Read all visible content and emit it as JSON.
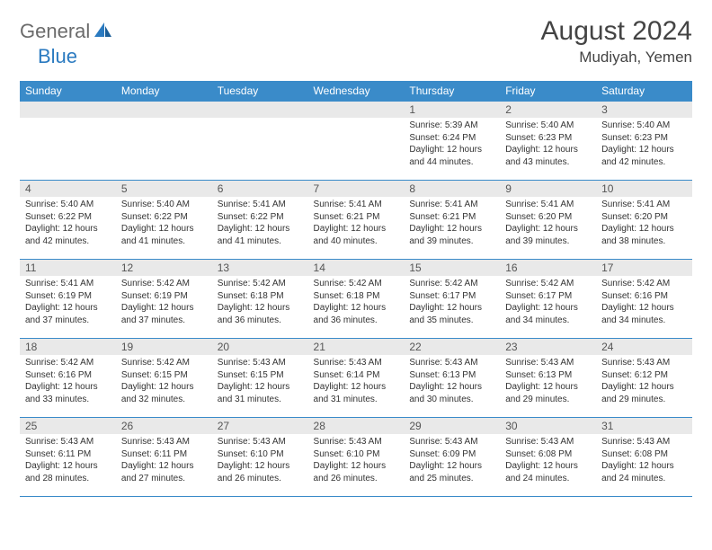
{
  "brand": {
    "part1": "General",
    "part2": "Blue"
  },
  "title": "August 2024",
  "location": "Mudiyah, Yemen",
  "colors": {
    "header_bg": "#3a8bc9",
    "header_text": "#ffffff",
    "daynum_bg": "#e9e9e9",
    "border": "#3a8bc9",
    "brand_gray": "#6b6b6b",
    "brand_blue": "#2a7ac0"
  },
  "daysOfWeek": [
    "Sunday",
    "Monday",
    "Tuesday",
    "Wednesday",
    "Thursday",
    "Friday",
    "Saturday"
  ],
  "weeks": [
    [
      {
        "n": "",
        "sr": "",
        "ss": "",
        "dl": ""
      },
      {
        "n": "",
        "sr": "",
        "ss": "",
        "dl": ""
      },
      {
        "n": "",
        "sr": "",
        "ss": "",
        "dl": ""
      },
      {
        "n": "",
        "sr": "",
        "ss": "",
        "dl": ""
      },
      {
        "n": "1",
        "sr": "Sunrise: 5:39 AM",
        "ss": "Sunset: 6:24 PM",
        "dl": "Daylight: 12 hours and 44 minutes."
      },
      {
        "n": "2",
        "sr": "Sunrise: 5:40 AM",
        "ss": "Sunset: 6:23 PM",
        "dl": "Daylight: 12 hours and 43 minutes."
      },
      {
        "n": "3",
        "sr": "Sunrise: 5:40 AM",
        "ss": "Sunset: 6:23 PM",
        "dl": "Daylight: 12 hours and 42 minutes."
      }
    ],
    [
      {
        "n": "4",
        "sr": "Sunrise: 5:40 AM",
        "ss": "Sunset: 6:22 PM",
        "dl": "Daylight: 12 hours and 42 minutes."
      },
      {
        "n": "5",
        "sr": "Sunrise: 5:40 AM",
        "ss": "Sunset: 6:22 PM",
        "dl": "Daylight: 12 hours and 41 minutes."
      },
      {
        "n": "6",
        "sr": "Sunrise: 5:41 AM",
        "ss": "Sunset: 6:22 PM",
        "dl": "Daylight: 12 hours and 41 minutes."
      },
      {
        "n": "7",
        "sr": "Sunrise: 5:41 AM",
        "ss": "Sunset: 6:21 PM",
        "dl": "Daylight: 12 hours and 40 minutes."
      },
      {
        "n": "8",
        "sr": "Sunrise: 5:41 AM",
        "ss": "Sunset: 6:21 PM",
        "dl": "Daylight: 12 hours and 39 minutes."
      },
      {
        "n": "9",
        "sr": "Sunrise: 5:41 AM",
        "ss": "Sunset: 6:20 PM",
        "dl": "Daylight: 12 hours and 39 minutes."
      },
      {
        "n": "10",
        "sr": "Sunrise: 5:41 AM",
        "ss": "Sunset: 6:20 PM",
        "dl": "Daylight: 12 hours and 38 minutes."
      }
    ],
    [
      {
        "n": "11",
        "sr": "Sunrise: 5:41 AM",
        "ss": "Sunset: 6:19 PM",
        "dl": "Daylight: 12 hours and 37 minutes."
      },
      {
        "n": "12",
        "sr": "Sunrise: 5:42 AM",
        "ss": "Sunset: 6:19 PM",
        "dl": "Daylight: 12 hours and 37 minutes."
      },
      {
        "n": "13",
        "sr": "Sunrise: 5:42 AM",
        "ss": "Sunset: 6:18 PM",
        "dl": "Daylight: 12 hours and 36 minutes."
      },
      {
        "n": "14",
        "sr": "Sunrise: 5:42 AM",
        "ss": "Sunset: 6:18 PM",
        "dl": "Daylight: 12 hours and 36 minutes."
      },
      {
        "n": "15",
        "sr": "Sunrise: 5:42 AM",
        "ss": "Sunset: 6:17 PM",
        "dl": "Daylight: 12 hours and 35 minutes."
      },
      {
        "n": "16",
        "sr": "Sunrise: 5:42 AM",
        "ss": "Sunset: 6:17 PM",
        "dl": "Daylight: 12 hours and 34 minutes."
      },
      {
        "n": "17",
        "sr": "Sunrise: 5:42 AM",
        "ss": "Sunset: 6:16 PM",
        "dl": "Daylight: 12 hours and 34 minutes."
      }
    ],
    [
      {
        "n": "18",
        "sr": "Sunrise: 5:42 AM",
        "ss": "Sunset: 6:16 PM",
        "dl": "Daylight: 12 hours and 33 minutes."
      },
      {
        "n": "19",
        "sr": "Sunrise: 5:42 AM",
        "ss": "Sunset: 6:15 PM",
        "dl": "Daylight: 12 hours and 32 minutes."
      },
      {
        "n": "20",
        "sr": "Sunrise: 5:43 AM",
        "ss": "Sunset: 6:15 PM",
        "dl": "Daylight: 12 hours and 31 minutes."
      },
      {
        "n": "21",
        "sr": "Sunrise: 5:43 AM",
        "ss": "Sunset: 6:14 PM",
        "dl": "Daylight: 12 hours and 31 minutes."
      },
      {
        "n": "22",
        "sr": "Sunrise: 5:43 AM",
        "ss": "Sunset: 6:13 PM",
        "dl": "Daylight: 12 hours and 30 minutes."
      },
      {
        "n": "23",
        "sr": "Sunrise: 5:43 AM",
        "ss": "Sunset: 6:13 PM",
        "dl": "Daylight: 12 hours and 29 minutes."
      },
      {
        "n": "24",
        "sr": "Sunrise: 5:43 AM",
        "ss": "Sunset: 6:12 PM",
        "dl": "Daylight: 12 hours and 29 minutes."
      }
    ],
    [
      {
        "n": "25",
        "sr": "Sunrise: 5:43 AM",
        "ss": "Sunset: 6:11 PM",
        "dl": "Daylight: 12 hours and 28 minutes."
      },
      {
        "n": "26",
        "sr": "Sunrise: 5:43 AM",
        "ss": "Sunset: 6:11 PM",
        "dl": "Daylight: 12 hours and 27 minutes."
      },
      {
        "n": "27",
        "sr": "Sunrise: 5:43 AM",
        "ss": "Sunset: 6:10 PM",
        "dl": "Daylight: 12 hours and 26 minutes."
      },
      {
        "n": "28",
        "sr": "Sunrise: 5:43 AM",
        "ss": "Sunset: 6:10 PM",
        "dl": "Daylight: 12 hours and 26 minutes."
      },
      {
        "n": "29",
        "sr": "Sunrise: 5:43 AM",
        "ss": "Sunset: 6:09 PM",
        "dl": "Daylight: 12 hours and 25 minutes."
      },
      {
        "n": "30",
        "sr": "Sunrise: 5:43 AM",
        "ss": "Sunset: 6:08 PM",
        "dl": "Daylight: 12 hours and 24 minutes."
      },
      {
        "n": "31",
        "sr": "Sunrise: 5:43 AM",
        "ss": "Sunset: 6:08 PM",
        "dl": "Daylight: 12 hours and 24 minutes."
      }
    ]
  ]
}
